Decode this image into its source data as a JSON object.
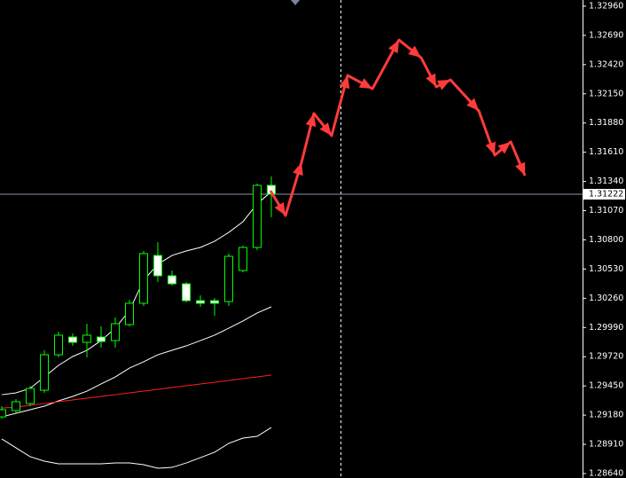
{
  "chart_data": {
    "type": "candlestick",
    "categories": [
      null,
      null,
      null,
      null,
      null,
      null,
      null,
      null,
      null,
      null,
      null,
      null,
      null,
      null,
      null,
      null,
      null,
      null,
      null,
      null
    ],
    "candles": {
      "up_color": "#00ff00",
      "down_color": "#ffffff",
      "open": [
        1.29164,
        1.29222,
        1.29287,
        1.2941,
        1.29738,
        1.29902,
        1.29853,
        1.29902,
        1.29869,
        1.30017,
        1.30214,
        1.30656,
        1.30468,
        1.30394,
        1.30238,
        1.30238,
        1.3023,
        1.30517,
        1.3073,
        1.31304
      ],
      "high": [
        1.29263,
        1.29328,
        1.29451,
        1.29779,
        1.29951,
        1.29935,
        1.30025,
        1.3,
        1.30083,
        1.30246,
        1.30697,
        1.30779,
        1.30517,
        1.3041,
        1.30287,
        1.30263,
        1.30673,
        1.30746,
        1.3132,
        1.31386
      ],
      "low": [
        1.29148,
        1.29197,
        1.29263,
        1.29386,
        1.29714,
        1.2982,
        1.29714,
        1.29804,
        1.29804,
        1.3,
        1.30189,
        1.3041,
        1.30378,
        1.30222,
        1.30181,
        1.30099,
        1.30189,
        1.305,
        1.30705,
        1.31009
      ],
      "close": [
        1.2923,
        1.29304,
        1.29427,
        1.29738,
        1.29919,
        1.29853,
        1.29919,
        1.29861,
        1.30025,
        1.30214,
        1.30673,
        1.30468,
        1.30394,
        1.30238,
        1.30214,
        1.30214,
        1.30648,
        1.3073,
        1.31304,
        1.31222
      ]
    },
    "lines": [
      {
        "color": "#ffffff",
        "values": [
          1.29369,
          1.29386,
          1.29427,
          1.29533,
          1.2964,
          1.29722,
          1.29779,
          1.29869,
          1.29984,
          1.30148,
          1.30427,
          1.30574,
          1.30656,
          1.30697,
          1.3073,
          1.30787,
          1.30869,
          1.30968,
          1.31132,
          1.31246
        ]
      },
      {
        "color": "#ffffff",
        "values": [
          1.29164,
          1.29197,
          1.2923,
          1.29263,
          1.29312,
          1.29353,
          1.29402,
          1.29468,
          1.29533,
          1.29615,
          1.29673,
          1.29738,
          1.29779,
          1.2982,
          1.29869,
          1.29919,
          1.29984,
          1.3005,
          1.30124,
          1.30181
        ]
      },
      {
        "color": "#ff2020",
        "values": [
          1.29246,
          1.29254,
          1.29271,
          1.29287,
          1.29304,
          1.2932,
          1.29337,
          1.29353,
          1.29369,
          1.29386,
          1.29402,
          1.29419,
          1.29435,
          1.29451,
          1.29468,
          1.29484,
          1.29501,
          1.29517,
          1.29533,
          1.2955
        ]
      },
      {
        "color": "#ffffff",
        "values": [
          1.2896,
          1.28878,
          1.28796,
          1.28755,
          1.2873,
          1.2873,
          1.2873,
          1.2873,
          1.28738,
          1.28738,
          1.28722,
          1.28689,
          1.28697,
          1.28738,
          1.28787,
          1.28837,
          1.28919,
          1.28968,
          1.28984,
          1.29066
        ]
      }
    ],
    "forecast": {
      "color": "#ff3b3b",
      "x": [
        18.94,
        20,
        21.13,
        22,
        23.25,
        24.38,
        26.13,
        28,
        29.56,
        30.63,
        31.63,
        33.63,
        34.75,
        35.88,
        36.88
      ],
      "values": [
        1.31255,
        1.31025,
        1.31517,
        1.31968,
        1.31763,
        1.3232,
        1.32197,
        1.32648,
        1.32484,
        1.32214,
        1.32279,
        1.31992,
        1.31583,
        1.31706,
        1.31394
      ]
    },
    "current_price": {
      "value": 1.31222,
      "label": "1.31222"
    },
    "xlim": [
      -0.125,
      40.94
    ],
    "ylim": [
      1.28599,
      1.33017
    ],
    "yticks": [
      {
        "value": 1.3296,
        "label": "1.32960"
      },
      {
        "value": 1.3269,
        "label": "1.32690"
      },
      {
        "value": 1.3242,
        "label": "1.32420"
      },
      {
        "value": 1.3215,
        "label": "1.32150"
      },
      {
        "value": 1.3188,
        "label": "1.31880"
      },
      {
        "value": 1.3161,
        "label": "1.31610"
      },
      {
        "value": 1.3134,
        "label": "1.31340"
      },
      {
        "value": 1.3107,
        "label": "1.31070"
      },
      {
        "value": 1.308,
        "label": "1.30800"
      },
      {
        "value": 1.3053,
        "label": "1.30530"
      },
      {
        "value": 1.3026,
        "label": "1.30260"
      },
      {
        "value": 1.2999,
        "label": "1.29990"
      },
      {
        "value": 1.2972,
        "label": "1.29720"
      },
      {
        "value": 1.2945,
        "label": "1.29450"
      },
      {
        "value": 1.2918,
        "label": "1.29180"
      },
      {
        "value": 1.2891,
        "label": "1.28910"
      },
      {
        "value": 1.2864,
        "label": "1.28640"
      }
    ]
  }
}
